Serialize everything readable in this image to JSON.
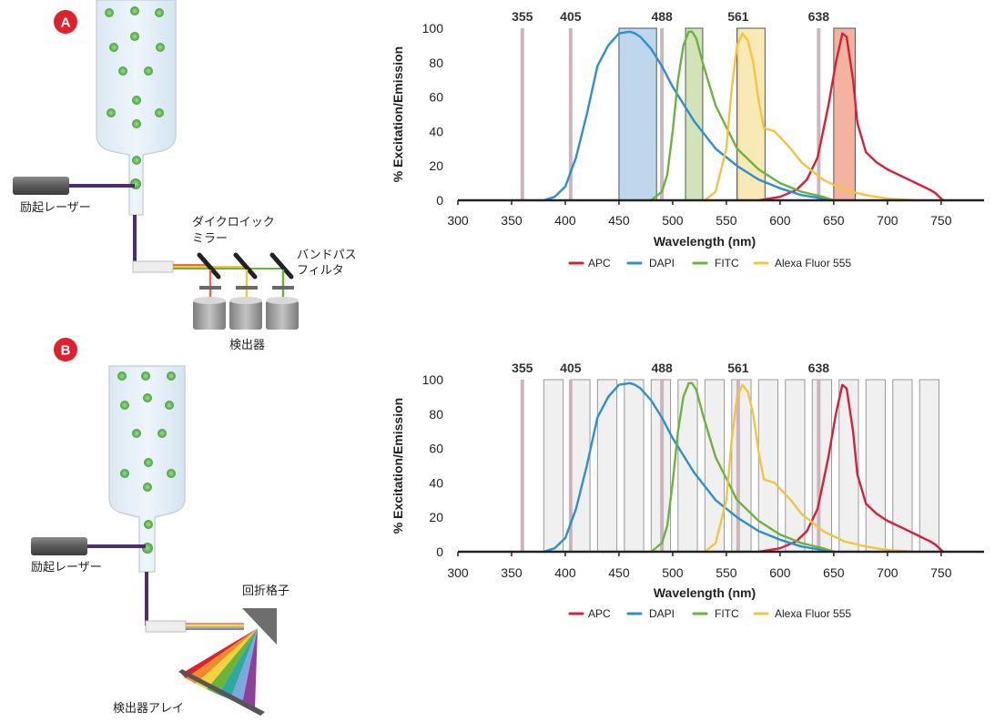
{
  "panel_a": {
    "badge": "A",
    "label_laser": "励起レーザー",
    "label_mirror_line1": "ダイクロイック",
    "label_mirror_line2": "ミラー",
    "label_filter_line1": "バンドパス",
    "label_filter_line2": "フィルタ",
    "label_detector": "検出器"
  },
  "panel_b": {
    "badge": "B",
    "label_laser": "励起レーザー",
    "label_grating": "回折格子",
    "label_detector_array": "検出器アレイ"
  },
  "colors": {
    "badge": "#e0202a",
    "APC": "#d81e3c",
    "DAPI": "#2b8fd0",
    "FITC": "#6ab43c",
    "Alexa Fluor 555": "#f2c53d",
    "laser_line": "#c8aeb9",
    "band": "#f0f0f0",
    "fiber": "#4a2e6e"
  },
  "chart_data": [
    {
      "type": "line",
      "xlabel": "Wavelength (nm)",
      "ylabel": "% Excitation/Emission",
      "xlim": [
        300,
        790
      ],
      "ylim": [
        0,
        100
      ],
      "xticks": [
        300,
        350,
        400,
        450,
        500,
        550,
        600,
        650,
        700,
        750
      ],
      "yticks": [
        0,
        20,
        40,
        60,
        80,
        100
      ],
      "legend_position": "bottom",
      "laser_lines": [
        {
          "label": "355",
          "x": 360
        },
        {
          "label": "405",
          "x": 405
        },
        {
          "label": "488",
          "x": 490
        },
        {
          "label": "561",
          "x": 561
        },
        {
          "label": "638",
          "x": 636
        }
      ],
      "bandpass_filters": [
        {
          "from": 450,
          "to": 485,
          "color": "#b8d3ec"
        },
        {
          "from": 512,
          "to": 528,
          "color": "#cde0b0"
        },
        {
          "from": 560,
          "to": 586,
          "color": "#f9e7ad"
        },
        {
          "from": 650,
          "to": 670,
          "color": "#f2ab95"
        }
      ],
      "series": [
        {
          "name": "APC",
          "x": [
            580,
            600,
            615,
            625,
            635,
            645,
            652,
            658,
            662,
            668,
            672,
            680,
            690,
            700,
            710,
            720,
            730,
            740,
            745,
            750,
            752
          ],
          "y": [
            0,
            2,
            6,
            12,
            25,
            55,
            80,
            97,
            95,
            70,
            45,
            28,
            22,
            18,
            15,
            12,
            9,
            6,
            4,
            1,
            0
          ]
        },
        {
          "name": "DAPI",
          "x": [
            380,
            390,
            400,
            410,
            420,
            430,
            440,
            450,
            460,
            465,
            470,
            480,
            490,
            500,
            520,
            540,
            560,
            580,
            600,
            620,
            640,
            650
          ],
          "y": [
            0,
            2,
            8,
            25,
            50,
            78,
            90,
            97,
            98,
            97,
            95,
            88,
            78,
            66,
            46,
            30,
            20,
            12,
            7,
            3,
            1,
            0
          ]
        },
        {
          "name": "FITC",
          "x": [
            480,
            490,
            495,
            500,
            505,
            510,
            515,
            518,
            522,
            528,
            540,
            560,
            580,
            600,
            620,
            640,
            650
          ],
          "y": [
            0,
            5,
            15,
            40,
            70,
            90,
            98,
            98,
            94,
            80,
            55,
            30,
            18,
            10,
            5,
            2,
            0
          ]
        },
        {
          "name": "Alexa Fluor 555",
          "x": [
            530,
            540,
            550,
            555,
            560,
            565,
            570,
            575,
            580,
            585,
            595,
            610,
            620,
            640,
            660,
            680,
            700,
            725
          ],
          "y": [
            0,
            5,
            30,
            65,
            90,
            97,
            93,
            80,
            58,
            42,
            40,
            30,
            22,
            12,
            6,
            3,
            1,
            0
          ]
        }
      ]
    },
    {
      "type": "line",
      "xlabel": "Wavelength (nm)",
      "ylabel": "% Excitation/Emission",
      "xlim": [
        300,
        790
      ],
      "ylim": [
        0,
        100
      ],
      "xticks": [
        300,
        350,
        400,
        450,
        500,
        550,
        600,
        650,
        700,
        750
      ],
      "yticks": [
        0,
        20,
        40,
        60,
        80,
        100
      ],
      "legend_position": "bottom",
      "laser_lines": [
        {
          "label": "355",
          "x": 360
        },
        {
          "label": "405",
          "x": 405
        },
        {
          "label": "488",
          "x": 490
        },
        {
          "label": "561",
          "x": 561
        },
        {
          "label": "638",
          "x": 636
        }
      ],
      "detector_bands": [
        {
          "from": 380,
          "to": 398
        },
        {
          "from": 405,
          "to": 423
        },
        {
          "from": 430,
          "to": 448
        },
        {
          "from": 455,
          "to": 473
        },
        {
          "from": 480,
          "to": 498
        },
        {
          "from": 505,
          "to": 523
        },
        {
          "from": 530,
          "to": 548
        },
        {
          "from": 555,
          "to": 573
        },
        {
          "from": 580,
          "to": 598
        },
        {
          "from": 605,
          "to": 623
        },
        {
          "from": 630,
          "to": 648
        },
        {
          "from": 655,
          "to": 673
        },
        {
          "from": 680,
          "to": 698
        },
        {
          "from": 705,
          "to": 723
        },
        {
          "from": 730,
          "to": 748
        }
      ],
      "series": [
        {
          "name": "APC",
          "x": [
            580,
            600,
            615,
            625,
            635,
            645,
            652,
            658,
            662,
            668,
            672,
            680,
            690,
            700,
            710,
            720,
            730,
            740,
            745,
            750,
            752
          ],
          "y": [
            0,
            2,
            6,
            12,
            25,
            55,
            80,
            97,
            95,
            70,
            45,
            28,
            22,
            18,
            15,
            12,
            9,
            6,
            4,
            1,
            0
          ]
        },
        {
          "name": "DAPI",
          "x": [
            380,
            390,
            400,
            410,
            420,
            430,
            440,
            450,
            460,
            465,
            470,
            480,
            490,
            500,
            520,
            540,
            560,
            580,
            600,
            620,
            640,
            650
          ],
          "y": [
            0,
            2,
            8,
            25,
            50,
            78,
            90,
            97,
            98,
            97,
            95,
            88,
            78,
            66,
            46,
            30,
            20,
            12,
            7,
            3,
            1,
            0
          ]
        },
        {
          "name": "FITC",
          "x": [
            480,
            490,
            495,
            500,
            505,
            510,
            515,
            518,
            522,
            528,
            540,
            560,
            580,
            600,
            620,
            640,
            650
          ],
          "y": [
            0,
            5,
            15,
            40,
            70,
            90,
            98,
            98,
            94,
            80,
            55,
            30,
            18,
            10,
            5,
            2,
            0
          ]
        },
        {
          "name": "Alexa Fluor 555",
          "x": [
            530,
            540,
            550,
            555,
            560,
            565,
            570,
            575,
            580,
            585,
            595,
            610,
            620,
            640,
            660,
            680,
            700,
            725
          ],
          "y": [
            0,
            5,
            30,
            65,
            90,
            97,
            93,
            80,
            58,
            42,
            40,
            30,
            22,
            12,
            6,
            3,
            1,
            0
          ]
        }
      ]
    }
  ]
}
